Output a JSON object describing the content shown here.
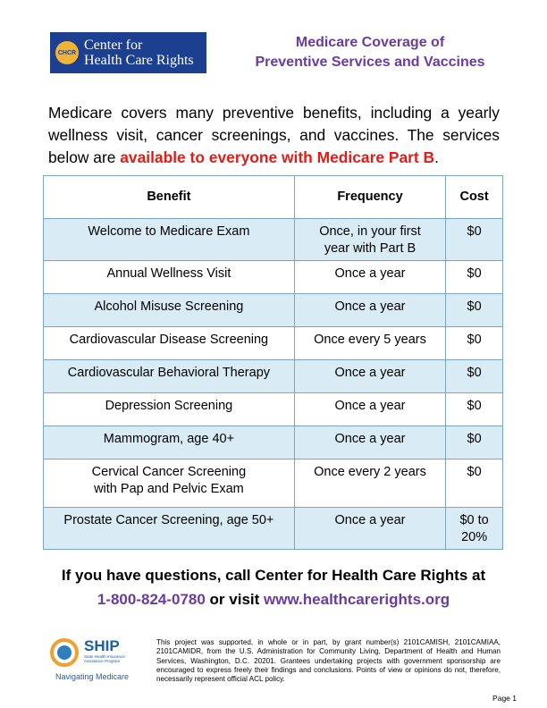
{
  "logo": {
    "abbr": "CHCR",
    "line1": "Center for",
    "line2": "Health Care Rights"
  },
  "title": {
    "line1": "Medicare Coverage of",
    "line2": "Preventive Services and Vaccines"
  },
  "intro": {
    "text": "Medicare covers many preventive benefits, including a yearly wellness visit, cancer screenings, and vaccines. The services below are ",
    "highlight": "available to everyone with Medicare Part B",
    "end": "."
  },
  "table": {
    "headers": [
      "Benefit",
      "Frequency",
      "Cost"
    ],
    "rows": [
      {
        "benefit": [
          "Welcome to Medicare Exam"
        ],
        "frequency": [
          "Once, in your first",
          "year with Part B"
        ],
        "cost": [
          "$0"
        ]
      },
      {
        "benefit": [
          "Annual Wellness Visit"
        ],
        "frequency": [
          "Once a year"
        ],
        "cost": [
          "$0"
        ]
      },
      {
        "benefit": [
          "Alcohol Misuse Screening"
        ],
        "frequency": [
          "Once a year"
        ],
        "cost": [
          "$0"
        ]
      },
      {
        "benefit": [
          "Cardiovascular Disease Screening"
        ],
        "frequency": [
          "Once every 5 years"
        ],
        "cost": [
          "$0"
        ]
      },
      {
        "benefit": [
          "Cardiovascular Behavioral Therapy"
        ],
        "frequency": [
          "Once a year"
        ],
        "cost": [
          "$0"
        ]
      },
      {
        "benefit": [
          "Depression Screening"
        ],
        "frequency": [
          "Once a year"
        ],
        "cost": [
          "$0"
        ]
      },
      {
        "benefit": [
          "Mammogram, age 40+"
        ],
        "frequency": [
          "Once a year"
        ],
        "cost": [
          "$0"
        ]
      },
      {
        "benefit": [
          "Cervical Cancer Screening",
          "with Pap and Pelvic Exam"
        ],
        "frequency": [
          "Once every 2 years"
        ],
        "cost": [
          "$0"
        ]
      },
      {
        "benefit": [
          "Prostate Cancer Screening, age 50+"
        ],
        "frequency": [
          "Once a year"
        ],
        "cost": [
          "$0 to",
          "20%"
        ]
      }
    ]
  },
  "contact": {
    "line1": "If you have questions, call Center for Health Care Rights at",
    "phone": "1-800-824-0780",
    "middle": " or visit ",
    "url": "www.healthcarerights.org"
  },
  "ship": {
    "name": "SHIP",
    "sub": "State Health Insurance Assistance Program",
    "tagline": "Navigating Medicare"
  },
  "disclaimer": "This project was supported, in whole or in part, by grant number(s) 2101CAMISH, 2101CAMIAA, 2101CAMIDR, from the U.S. Administration for Community Living, Department of Health and Human Services, Washington, D.C. 20201. Grantees undertaking projects with government sponsorship are encouraged to express freely their findings and conclusions. Points of view or opinions do not, therefore, necessarily represent official ACL policy.",
  "page_number": "Page 1",
  "colors": {
    "title_purple": "#6b3aa3",
    "highlight_red": "#e41b17",
    "row_blue": "#d9ebf5",
    "logo_navy": "#1c3f8f"
  }
}
